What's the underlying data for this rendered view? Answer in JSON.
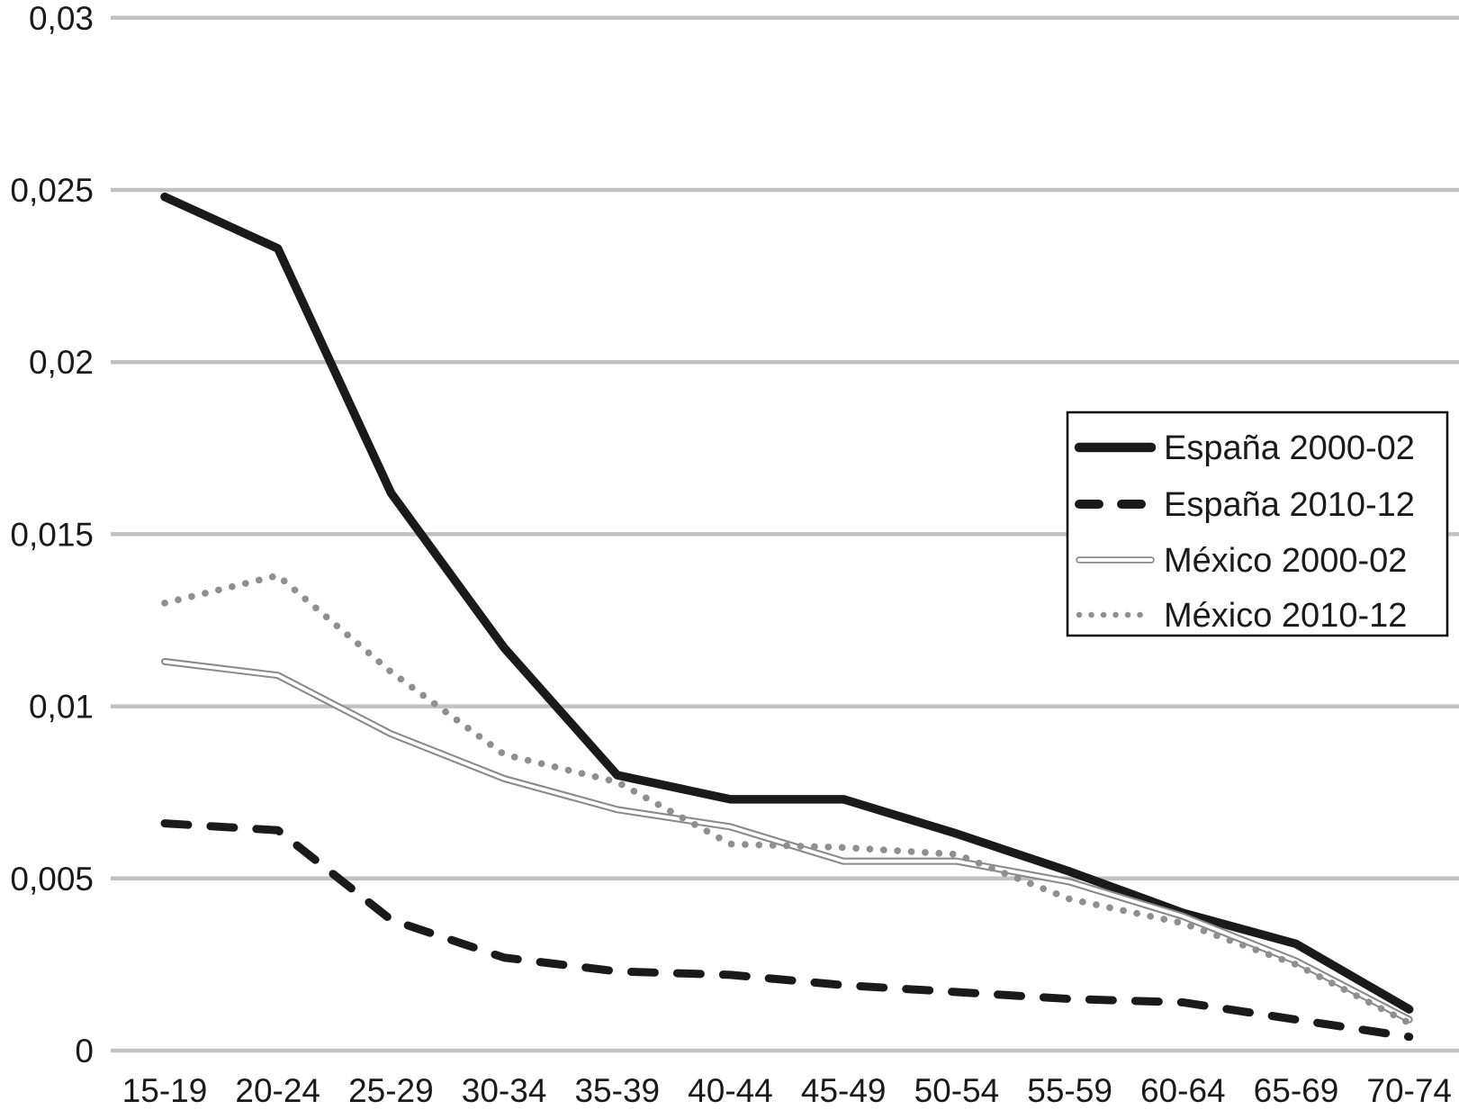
{
  "chart_data": {
    "type": "line",
    "title": "",
    "xlabel": "",
    "ylabel": "",
    "categories": [
      "15-19",
      "20-24",
      "25-29",
      "30-34",
      "35-39",
      "40-44",
      "45-49",
      "50-54",
      "55-59",
      "60-64",
      "65-69",
      "70-74"
    ],
    "series": [
      {
        "name": "España 2000-02",
        "style": "solid-thick-black",
        "color": "#1a1a1a",
        "values": [
          0.0248,
          0.0233,
          0.0162,
          0.0117,
          0.008,
          0.0073,
          0.0073,
          0.0063,
          0.0052,
          0.004,
          0.0031,
          0.0012
        ]
      },
      {
        "name": "España 2010-12",
        "style": "dashed-black",
        "color": "#1a1a1a",
        "values": [
          0.0066,
          0.0064,
          0.0038,
          0.0027,
          0.0023,
          0.0022,
          0.0019,
          0.0017,
          0.0015,
          0.0014,
          0.0009,
          0.0004
        ]
      },
      {
        "name": "México 2000-02",
        "style": "double-gray",
        "color": "#8a8a8a",
        "values": [
          0.0113,
          0.0109,
          0.0092,
          0.0079,
          0.007,
          0.0065,
          0.0055,
          0.0055,
          0.0049,
          0.0039,
          0.0026,
          0.0009
        ]
      },
      {
        "name": "México 2010-12",
        "style": "dotted-gray",
        "color": "#8f8f8f",
        "values": [
          0.013,
          0.0138,
          0.011,
          0.0086,
          0.0078,
          0.006,
          0.0059,
          0.0057,
          0.0044,
          0.0037,
          0.0025,
          0.0008
        ]
      }
    ],
    "ylim": [
      0,
      0.03
    ],
    "y_ticks": [
      {
        "value": 0,
        "label": "0"
      },
      {
        "value": 0.005,
        "label": "0,005"
      },
      {
        "value": 0.01,
        "label": "0,01"
      },
      {
        "value": 0.015,
        "label": "0,015"
      },
      {
        "value": 0.02,
        "label": "0,02"
      },
      {
        "value": 0.025,
        "label": "0,025"
      },
      {
        "value": 0.03,
        "label": "0,03"
      }
    ],
    "grid": "horizontal",
    "legend": {
      "position": "middle-right",
      "border": true,
      "entries": [
        "España 2000-02",
        "España 2010-12",
        "México 2000-02",
        "México 2010-12"
      ]
    },
    "colors": {
      "line_black": "#1a1a1a",
      "line_gray": "#8a8a8a",
      "dot_gray": "#8f8f8f",
      "gridline": "#c1c1c1",
      "text": "#1a1a1a",
      "background": "#ffffff",
      "legend_border": "#000000"
    }
  }
}
